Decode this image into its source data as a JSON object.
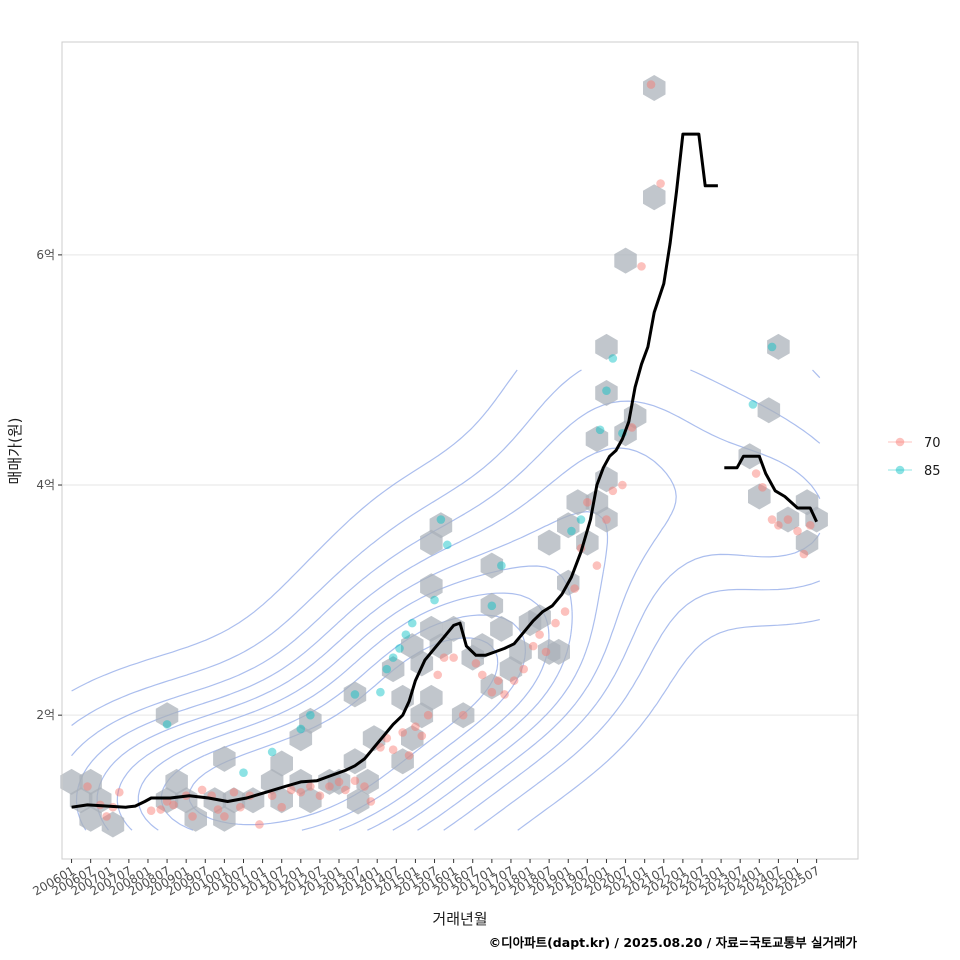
{
  "chart_data": {
    "type": "scatter",
    "xlabel": "거래년월",
    "ylabel": "매매가(원)",
    "caption": "©디아파트(dapt.kr) / 2025.08.20 / 자료=국토교통부 실거래가",
    "x_domain": [
      "2005-10",
      "2026-08"
    ],
    "ylim": [
      0.75,
      7.85
    ],
    "y_unit": "억",
    "grid": true,
    "legend_position": "right",
    "x_tick_labels": [
      "200601",
      "200607",
      "200701",
      "200707",
      "200801",
      "200807",
      "200901",
      "200907",
      "201001",
      "201007",
      "201101",
      "201107",
      "201201",
      "201207",
      "201301",
      "201307",
      "201401",
      "201407",
      "201501",
      "201507",
      "201601",
      "201607",
      "201701",
      "201707",
      "201801",
      "201807",
      "201901",
      "201907",
      "202001",
      "202007",
      "202101",
      "202107",
      "202201",
      "202207",
      "202301",
      "202307",
      "202401",
      "202407",
      "202501",
      "202507"
    ],
    "y_ticks": [
      {
        "value": 2,
        "label": "2억"
      },
      {
        "value": 4,
        "label": "4억"
      },
      {
        "value": 6,
        "label": "6억"
      }
    ],
    "colors": {
      "series_70": "#F8766D",
      "series_85": "#00BFC4",
      "trend_line": "#000000",
      "hexbin": "#A9B0B8",
      "density": "#8FA8E8",
      "grid": "#EBEBEB",
      "panel_border": "#CCCCCC"
    },
    "legend": [
      {
        "name": "70",
        "color": "#F8766D"
      },
      {
        "name": "85",
        "color": "#00BFC4"
      }
    ],
    "series": [
      {
        "name": "70",
        "points": [
          [
            "2006-06",
            1.38
          ],
          [
            "2006-10",
            1.22
          ],
          [
            "2006-12",
            1.12
          ],
          [
            "2007-02",
            1.2
          ],
          [
            "2007-04",
            1.33
          ],
          [
            "2008-02",
            1.17
          ],
          [
            "2008-05",
            1.18
          ],
          [
            "2008-07",
            1.25
          ],
          [
            "2008-09",
            1.22
          ],
          [
            "2009-01",
            1.3
          ],
          [
            "2009-03",
            1.12
          ],
          [
            "2009-06",
            1.35
          ],
          [
            "2009-09",
            1.3
          ],
          [
            "2009-11",
            1.18
          ],
          [
            "2010-01",
            1.12
          ],
          [
            "2010-04",
            1.33
          ],
          [
            "2010-06",
            1.2
          ],
          [
            "2010-09",
            1.3
          ],
          [
            "2010-12",
            1.05
          ],
          [
            "2011-04",
            1.3
          ],
          [
            "2011-07",
            1.2
          ],
          [
            "2011-10",
            1.35
          ],
          [
            "2012-01",
            1.33
          ],
          [
            "2012-04",
            1.38
          ],
          [
            "2012-07",
            1.3
          ],
          [
            "2012-10",
            1.38
          ],
          [
            "2013-01",
            1.42
          ],
          [
            "2013-03",
            1.35
          ],
          [
            "2013-06",
            1.43
          ],
          [
            "2013-09",
            1.38
          ],
          [
            "2013-11",
            1.25
          ],
          [
            "2014-02",
            1.72
          ],
          [
            "2014-04",
            1.8
          ],
          [
            "2014-06",
            1.7
          ],
          [
            "2014-09",
            1.85
          ],
          [
            "2014-11",
            1.65
          ],
          [
            "2015-01",
            1.9
          ],
          [
            "2015-03",
            1.82
          ],
          [
            "2015-05",
            2.0
          ],
          [
            "2015-08",
            2.35
          ],
          [
            "2015-10",
            2.5
          ],
          [
            "2016-01",
            2.5
          ],
          [
            "2016-04",
            2.0
          ],
          [
            "2016-08",
            2.45
          ],
          [
            "2016-10",
            2.35
          ],
          [
            "2017-01",
            2.2
          ],
          [
            "2017-03",
            2.3
          ],
          [
            "2017-05",
            2.18
          ],
          [
            "2017-08",
            2.3
          ],
          [
            "2017-11",
            2.4
          ],
          [
            "2018-02",
            2.6
          ],
          [
            "2018-04",
            2.7
          ],
          [
            "2018-06",
            2.55
          ],
          [
            "2018-09",
            2.8
          ],
          [
            "2018-12",
            2.9
          ],
          [
            "2019-03",
            3.1
          ],
          [
            "2019-05",
            3.45
          ],
          [
            "2019-07",
            3.85
          ],
          [
            "2019-10",
            3.3
          ],
          [
            "2020-01",
            3.7
          ],
          [
            "2020-03",
            3.95
          ],
          [
            "2020-06",
            4.0
          ],
          [
            "2020-09",
            4.5
          ],
          [
            "2020-12",
            5.9
          ],
          [
            "2021-03",
            7.48
          ],
          [
            "2021-06",
            6.62
          ],
          [
            "2023-12",
            4.1
          ],
          [
            "2024-02",
            3.98
          ],
          [
            "2024-05",
            3.7
          ],
          [
            "2024-07",
            3.65
          ],
          [
            "2024-10",
            3.7
          ],
          [
            "2025-01",
            3.6
          ],
          [
            "2025-03",
            3.4
          ],
          [
            "2025-05",
            3.65
          ]
        ]
      },
      {
        "name": "85",
        "points": [
          [
            "2008-07",
            1.92
          ],
          [
            "2010-07",
            1.5
          ],
          [
            "2011-04",
            1.68
          ],
          [
            "2012-01",
            1.88
          ],
          [
            "2012-04",
            2.0
          ],
          [
            "2013-06",
            2.18
          ],
          [
            "2014-02",
            2.2
          ],
          [
            "2014-04",
            2.4
          ],
          [
            "2014-06",
            2.5
          ],
          [
            "2014-08",
            2.58
          ],
          [
            "2014-10",
            2.7
          ],
          [
            "2014-12",
            2.8
          ],
          [
            "2015-07",
            3.0
          ],
          [
            "2015-09",
            3.7
          ],
          [
            "2015-11",
            3.48
          ],
          [
            "2017-01",
            2.95
          ],
          [
            "2017-04",
            3.3
          ],
          [
            "2019-02",
            3.6
          ],
          [
            "2019-05",
            3.7
          ],
          [
            "2019-11",
            4.48
          ],
          [
            "2020-01",
            4.82
          ],
          [
            "2020-03",
            5.1
          ],
          [
            "2020-06",
            4.45
          ],
          [
            "2023-11",
            4.7
          ],
          [
            "2024-05",
            5.2
          ]
        ]
      }
    ],
    "trend_line": {
      "name": "median",
      "segments": [
        [
          [
            "2006-01",
            1.2
          ],
          [
            "2006-06",
            1.22
          ],
          [
            "2007-06",
            1.2
          ],
          [
            "2007-09",
            1.21
          ],
          [
            "2007-12",
            1.25
          ],
          [
            "2008-02",
            1.28
          ],
          [
            "2008-08",
            1.28
          ],
          [
            "2009-02",
            1.3
          ],
          [
            "2009-08",
            1.28
          ],
          [
            "2010-02",
            1.25
          ],
          [
            "2010-08",
            1.28
          ],
          [
            "2011-02",
            1.33
          ],
          [
            "2011-08",
            1.38
          ],
          [
            "2012-01",
            1.42
          ],
          [
            "2012-06",
            1.43
          ],
          [
            "2012-10",
            1.47
          ],
          [
            "2013-03",
            1.52
          ],
          [
            "2013-06",
            1.56
          ],
          [
            "2013-09",
            1.62
          ],
          [
            "2013-12",
            1.72
          ],
          [
            "2014-03",
            1.82
          ],
          [
            "2014-06",
            1.92
          ],
          [
            "2014-09",
            2.0
          ],
          [
            "2014-11",
            2.12
          ],
          [
            "2015-01",
            2.3
          ],
          [
            "2015-04",
            2.48
          ],
          [
            "2015-07",
            2.58
          ],
          [
            "2015-10",
            2.68
          ],
          [
            "2016-01",
            2.78
          ],
          [
            "2016-03",
            2.8
          ],
          [
            "2016-05",
            2.6
          ],
          [
            "2016-08",
            2.52
          ],
          [
            "2016-11",
            2.52
          ],
          [
            "2017-02",
            2.55
          ],
          [
            "2017-05",
            2.58
          ],
          [
            "2017-08",
            2.62
          ],
          [
            "2017-11",
            2.72
          ],
          [
            "2018-02",
            2.82
          ],
          [
            "2018-05",
            2.9
          ],
          [
            "2018-08",
            2.95
          ],
          [
            "2018-11",
            3.05
          ],
          [
            "2019-02",
            3.2
          ],
          [
            "2019-05",
            3.42
          ],
          [
            "2019-08",
            3.7
          ],
          [
            "2019-10",
            4.0
          ],
          [
            "2019-12",
            4.15
          ],
          [
            "2020-02",
            4.25
          ],
          [
            "2020-04",
            4.3
          ],
          [
            "2020-06",
            4.4
          ],
          [
            "2020-08",
            4.55
          ],
          [
            "2020-10",
            4.85
          ],
          [
            "2020-12",
            5.05
          ],
          [
            "2021-02",
            5.2
          ],
          [
            "2021-04",
            5.5
          ],
          [
            "2021-07",
            5.75
          ],
          [
            "2021-09",
            6.1
          ],
          [
            "2021-11",
            6.55
          ],
          [
            "2022-01",
            7.05
          ],
          [
            "2022-06",
            7.05
          ],
          [
            "2022-08",
            6.6
          ],
          [
            "2022-12",
            6.6
          ]
        ],
        [
          [
            "2023-02",
            4.15
          ],
          [
            "2023-06",
            4.15
          ],
          [
            "2023-08",
            4.25
          ],
          [
            "2024-01",
            4.25
          ],
          [
            "2024-03",
            4.1
          ],
          [
            "2024-06",
            3.95
          ],
          [
            "2024-09",
            3.9
          ],
          [
            "2025-01",
            3.8
          ],
          [
            "2025-05",
            3.8
          ],
          [
            "2025-07",
            3.68
          ]
        ]
      ]
    },
    "hexbins": [
      [
        "2006-01",
        1.42
      ],
      [
        "2006-07",
        1.42
      ],
      [
        "2006-04",
        1.26
      ],
      [
        "2006-10",
        1.26
      ],
      [
        "2006-07",
        1.1
      ],
      [
        "2007-02",
        1.05
      ],
      [
        "2008-07",
        2.0
      ],
      [
        "2008-10",
        1.42
      ],
      [
        "2008-07",
        1.26
      ],
      [
        "2009-01",
        1.26
      ],
      [
        "2009-04",
        1.1
      ],
      [
        "2009-10",
        1.26
      ],
      [
        "2010-01",
        1.1
      ],
      [
        "2010-04",
        1.26
      ],
      [
        "2010-01",
        1.62
      ],
      [
        "2010-10",
        1.26
      ],
      [
        "2011-04",
        1.42
      ],
      [
        "2011-07",
        1.26
      ],
      [
        "2011-07",
        1.58
      ],
      [
        "2012-01",
        1.42
      ],
      [
        "2012-01",
        1.8
      ],
      [
        "2012-04",
        1.95
      ],
      [
        "2012-04",
        1.26
      ],
      [
        "2012-10",
        1.42
      ],
      [
        "2013-01",
        1.42
      ],
      [
        "2013-06",
        2.18
      ],
      [
        "2013-06",
        1.6
      ],
      [
        "2013-10",
        1.42
      ],
      [
        "2013-07",
        1.25
      ],
      [
        "2013-12",
        1.8
      ],
      [
        "2014-06",
        2.4
      ],
      [
        "2014-09",
        2.15
      ],
      [
        "2014-12",
        1.8
      ],
      [
        "2014-09",
        1.6
      ],
      [
        "2014-12",
        2.6
      ],
      [
        "2015-03",
        2.45
      ],
      [
        "2015-06",
        2.75
      ],
      [
        "2015-03",
        2.0
      ],
      [
        "2015-06",
        2.15
      ],
      [
        "2015-06",
        3.12
      ],
      [
        "2015-06",
        3.5
      ],
      [
        "2015-09",
        3.65
      ],
      [
        "2015-09",
        2.6
      ],
      [
        "2016-01",
        2.75
      ],
      [
        "2016-04",
        2.0
      ],
      [
        "2016-07",
        2.5
      ],
      [
        "2016-10",
        2.6
      ],
      [
        "2017-01",
        2.25
      ],
      [
        "2017-01",
        3.3
      ],
      [
        "2017-01",
        2.95
      ],
      [
        "2017-04",
        2.75
      ],
      [
        "2017-07",
        2.4
      ],
      [
        "2017-10",
        2.55
      ],
      [
        "2018-01",
        2.8
      ],
      [
        "2018-04",
        2.85
      ],
      [
        "2018-07",
        2.55
      ],
      [
        "2018-10",
        2.55
      ],
      [
        "2018-07",
        3.5
      ],
      [
        "2019-01",
        3.65
      ],
      [
        "2019-04",
        3.85
      ],
      [
        "2019-07",
        3.5
      ],
      [
        "2019-10",
        3.85
      ],
      [
        "2019-01",
        3.15
      ],
      [
        "2019-10",
        4.4
      ],
      [
        "2020-01",
        4.05
      ],
      [
        "2020-01",
        3.7
      ],
      [
        "2020-01",
        4.8
      ],
      [
        "2020-01",
        5.2
      ],
      [
        "2020-07",
        4.45
      ],
      [
        "2020-10",
        4.6
      ],
      [
        "2020-07",
        5.95
      ],
      [
        "2021-04",
        6.5
      ],
      [
        "2021-04",
        7.45
      ],
      [
        "2023-10",
        4.25
      ],
      [
        "2024-04",
        4.65
      ],
      [
        "2024-07",
        5.2
      ],
      [
        "2024-01",
        3.9
      ],
      [
        "2024-10",
        3.7
      ],
      [
        "2025-04",
        3.85
      ],
      [
        "2025-07",
        3.7
      ],
      [
        "2025-04",
        3.5
      ]
    ]
  }
}
